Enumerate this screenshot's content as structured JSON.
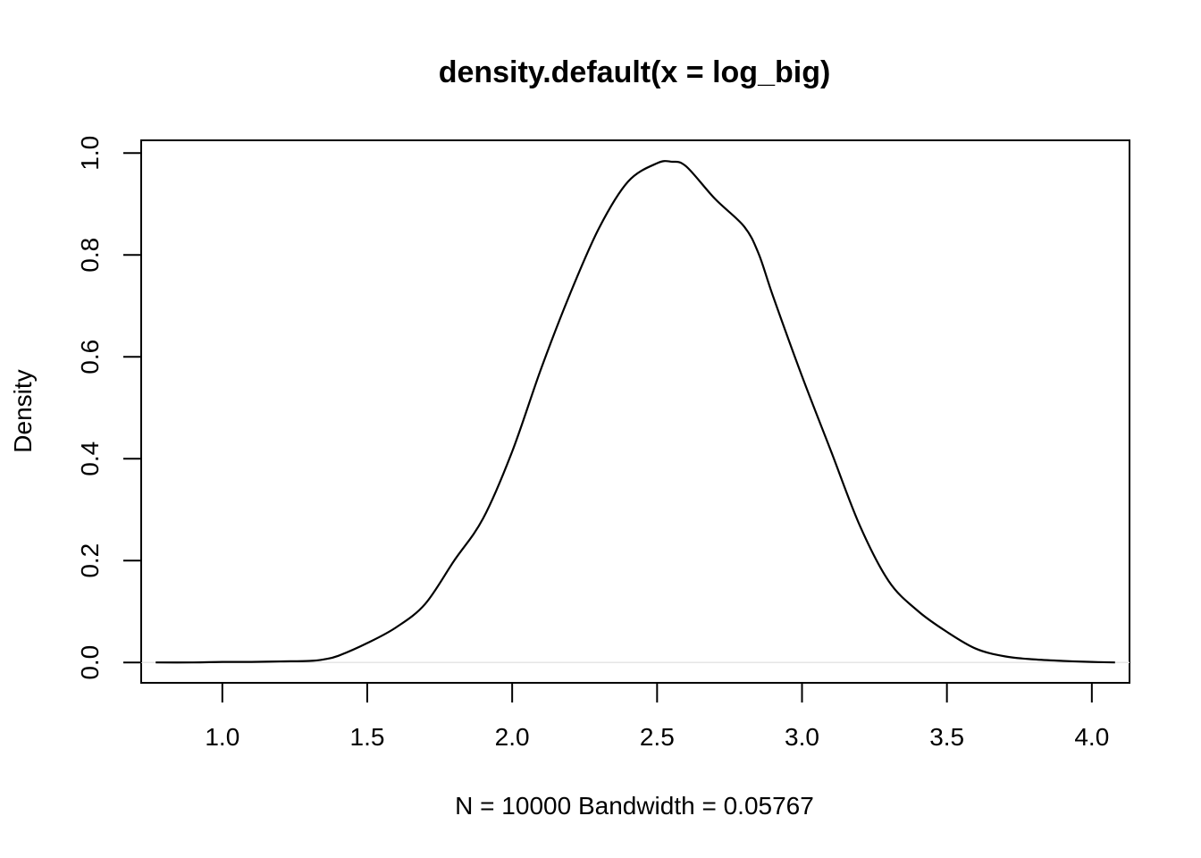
{
  "chart_data": {
    "type": "line",
    "title": "density.default(x = log_big)",
    "xlabel": "N = 10000   Bandwidth = 0.05767",
    "ylabel": "Density",
    "xlim": [
      0.72,
      4.13
    ],
    "ylim": [
      -0.04,
      1.025
    ],
    "xticks": [
      1.0,
      1.5,
      2.0,
      2.5,
      3.0,
      3.5,
      4.0
    ],
    "xtick_labels": [
      "1.0",
      "1.5",
      "2.0",
      "2.5",
      "3.0",
      "3.5",
      "4.0"
    ],
    "yticks": [
      0.0,
      0.2,
      0.4,
      0.6,
      0.8,
      1.0
    ],
    "ytick_labels": [
      "0.0",
      "0.2",
      "0.4",
      "0.6",
      "0.8",
      "1.0"
    ],
    "grid": false,
    "zero_line": true,
    "series": [
      {
        "x": [
          0.77,
          0.9,
          1.0,
          1.1,
          1.2,
          1.3,
          1.35,
          1.4,
          1.5,
          1.6,
          1.7,
          1.8,
          1.9,
          2.0,
          2.1,
          2.2,
          2.3,
          2.4,
          2.5,
          2.55,
          2.6,
          2.7,
          2.8,
          2.85,
          2.9,
          3.0,
          3.1,
          3.2,
          3.3,
          3.4,
          3.5,
          3.6,
          3.7,
          3.8,
          3.9,
          4.0,
          4.08
        ],
        "y": [
          0.0,
          0.0,
          0.001,
          0.001,
          0.002,
          0.003,
          0.006,
          0.013,
          0.038,
          0.069,
          0.115,
          0.2,
          0.283,
          0.414,
          0.577,
          0.724,
          0.853,
          0.944,
          0.98,
          0.983,
          0.974,
          0.91,
          0.856,
          0.803,
          0.719,
          0.562,
          0.415,
          0.268,
          0.159,
          0.101,
          0.06,
          0.027,
          0.012,
          0.006,
          0.003,
          0.001,
          0.0
        ]
      }
    ]
  }
}
